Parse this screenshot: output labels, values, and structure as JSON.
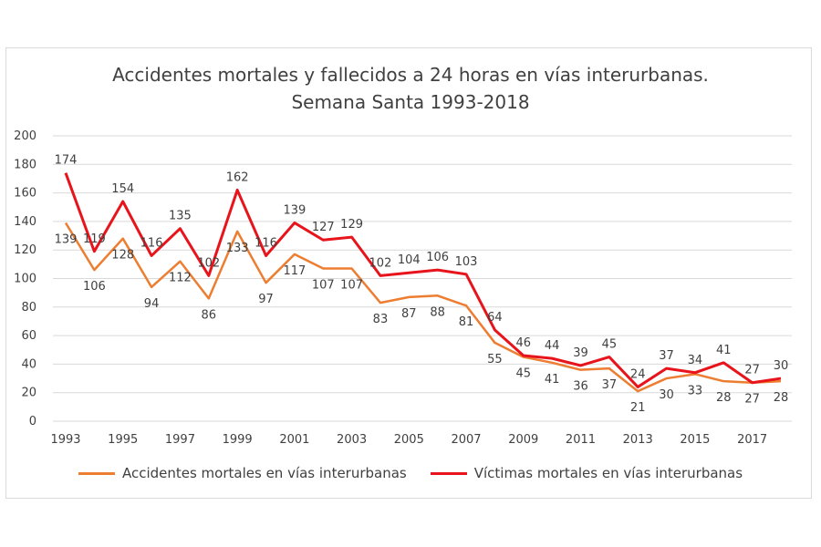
{
  "chart_data": {
    "type": "line",
    "title_line1": "Accidentes mortales y fallecidos a 24 horas en vías interurbanas.",
    "title_line2": "Semana Santa 1993-2018",
    "x": [
      1993,
      1994,
      1995,
      1996,
      1997,
      1998,
      1999,
      2000,
      2001,
      2002,
      2003,
      2004,
      2005,
      2006,
      2007,
      2008,
      2009,
      2010,
      2011,
      2012,
      2013,
      2014,
      2015,
      2016,
      2017,
      2018
    ],
    "x_tick_labels": [
      "1993",
      "1995",
      "1997",
      "1999",
      "2001",
      "2003",
      "2005",
      "2007",
      "2009",
      "2011",
      "2013",
      "2015",
      "2017"
    ],
    "ylim": [
      0,
      200
    ],
    "y_tick_labels": [
      "0",
      "20",
      "40",
      "60",
      "80",
      "100",
      "120",
      "140",
      "160",
      "180",
      "200"
    ],
    "grid": true,
    "legend_position": "bottom",
    "series": [
      {
        "name": "Accidentes mortales en vías interurbanas",
        "color": "#ED7D31",
        "values": [
          139,
          106,
          128,
          94,
          112,
          86,
          133,
          97,
          117,
          107,
          107,
          83,
          87,
          88,
          81,
          55,
          45,
          41,
          36,
          37,
          21,
          30,
          33,
          28,
          27,
          28
        ]
      },
      {
        "name": "Víctimas mortales en vías interurbanas",
        "color": "#E8141B",
        "values": [
          174,
          119,
          154,
          116,
          135,
          102,
          162,
          116,
          139,
          127,
          129,
          102,
          104,
          106,
          103,
          64,
          46,
          44,
          39,
          45,
          24,
          37,
          34,
          41,
          27,
          30
        ]
      }
    ]
  }
}
